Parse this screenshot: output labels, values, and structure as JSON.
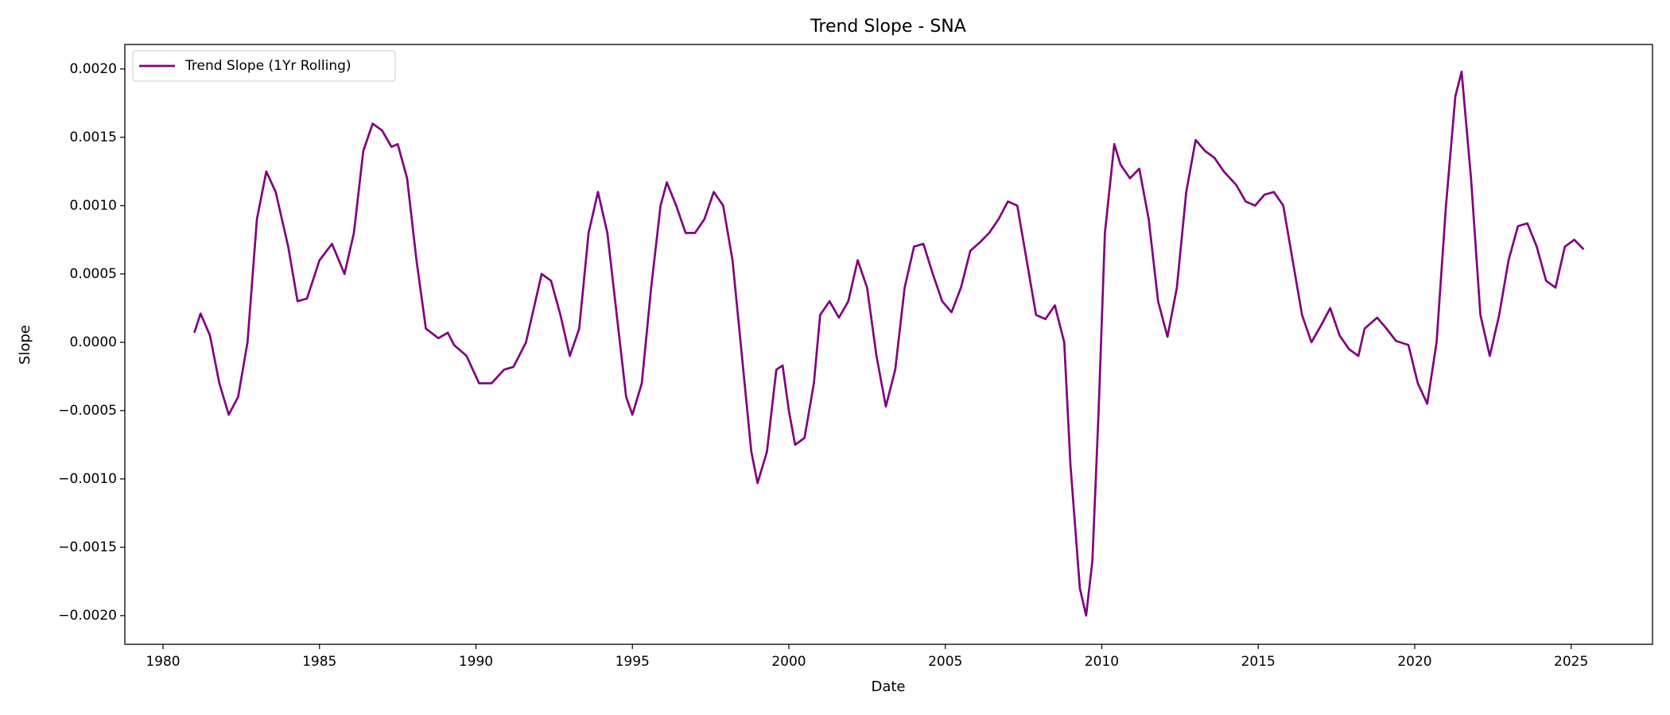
{
  "chart_data": {
    "type": "line",
    "title": "Trend Slope - SNA",
    "x_label": "Date",
    "y_label": "Slope",
    "legend": "upper left",
    "grid": false,
    "xlim": [
      1978.78,
      2027.6
    ],
    "ylim": [
      -0.00221,
      0.002179
    ],
    "xticks": [
      1980,
      1985,
      1990,
      1995,
      2000,
      2005,
      2010,
      2015,
      2020,
      2025
    ],
    "yticks": [
      {
        "value": -0.002,
        "label": "−0.0020"
      },
      {
        "value": -0.0015,
        "label": "−0.0015"
      },
      {
        "value": -0.001,
        "label": "−0.0010"
      },
      {
        "value": -0.0005,
        "label": "−0.0005"
      },
      {
        "value": 0,
        "label": "0.0000"
      },
      {
        "value": 0.0005,
        "label": "0.0005"
      },
      {
        "value": 0.001,
        "label": "0.0010"
      },
      {
        "value": 0.0015,
        "label": "0.0015"
      },
      {
        "value": 0.002,
        "label": "0.0020"
      }
    ],
    "x": [
      1981.0,
      1981.2,
      1981.5,
      1981.8,
      1982.1,
      1982.4,
      1982.7,
      1983.0,
      1983.3,
      1983.6,
      1984.0,
      1984.3,
      1984.6,
      1985.0,
      1985.4,
      1985.8,
      1986.1,
      1986.4,
      1986.7,
      1987.0,
      1987.3,
      1987.5,
      1987.8,
      1988.1,
      1988.4,
      1988.8,
      1989.1,
      1989.3,
      1989.7,
      1990.1,
      1990.5,
      1990.9,
      1991.2,
      1991.6,
      1991.9,
      1992.1,
      1992.4,
      1992.7,
      1993.0,
      1993.3,
      1993.6,
      1993.9,
      1994.2,
      1994.5,
      1994.8,
      1995.0,
      1995.3,
      1995.6,
      1995.9,
      1996.1,
      1996.4,
      1996.7,
      1997.0,
      1997.3,
      1997.6,
      1997.9,
      1998.2,
      1998.5,
      1998.8,
      1999.0,
      1999.3,
      1999.6,
      1999.8,
      2000.0,
      2000.2,
      2000.5,
      2000.8,
      2001.0,
      2001.3,
      2001.6,
      2001.9,
      2002.2,
      2002.5,
      2002.8,
      2003.1,
      2003.4,
      2003.7,
      2004.0,
      2004.3,
      2004.6,
      2004.9,
      2005.2,
      2005.5,
      2005.8,
      2006.1,
      2006.4,
      2006.7,
      2007.0,
      2007.3,
      2007.6,
      2007.9,
      2008.2,
      2008.5,
      2008.8,
      2009.0,
      2009.3,
      2009.5,
      2009.7,
      2009.9,
      2010.1,
      2010.4,
      2010.6,
      2010.9,
      2011.2,
      2011.5,
      2011.8,
      2012.1,
      2012.4,
      2012.7,
      2013.0,
      2013.3,
      2013.6,
      2013.9,
      2014.3,
      2014.6,
      2014.9,
      2015.2,
      2015.5,
      2015.8,
      2016.1,
      2016.4,
      2016.7,
      2017.0,
      2017.3,
      2017.6,
      2017.9,
      2018.2,
      2018.4,
      2018.8,
      2019.1,
      2019.4,
      2019.8,
      2020.1,
      2020.4,
      2020.7,
      2021.0,
      2021.3,
      2021.5,
      2021.8,
      2022.1,
      2022.4,
      2022.7,
      2023.0,
      2023.3,
      2023.6,
      2023.9,
      2024.2,
      2024.5,
      2024.8,
      2025.1,
      2025.4
    ],
    "series": [
      {
        "name": "Trend Slope (1Yr Rolling)",
        "color": "#800080",
        "values": [
          7e-05,
          0.00021,
          5e-05,
          -0.0003,
          -0.00053,
          -0.0004,
          0.0,
          0.0009,
          0.00125,
          0.0011,
          0.0007,
          0.0003,
          0.00032,
          0.0006,
          0.00072,
          0.0005,
          0.0008,
          0.0014,
          0.0016,
          0.00155,
          0.00143,
          0.00145,
          0.0012,
          0.0006,
          0.0001,
          3e-05,
          7e-05,
          -2e-05,
          -0.0001,
          -0.0003,
          -0.0003,
          -0.0002,
          -0.00018,
          0.0,
          0.0003,
          0.0005,
          0.00045,
          0.0002,
          -0.0001,
          0.0001,
          0.0008,
          0.0011,
          0.0008,
          0.0002,
          -0.0004,
          -0.00053,
          -0.0003,
          0.0004,
          0.001,
          0.00117,
          0.001,
          0.0008,
          0.0008,
          0.0009,
          0.0011,
          0.001,
          0.0006,
          -0.0001,
          -0.0008,
          -0.00103,
          -0.0008,
          -0.0002,
          -0.00017,
          -0.0005,
          -0.00075,
          -0.0007,
          -0.0003,
          0.0002,
          0.0003,
          0.00018,
          0.0003,
          0.0006,
          0.0004,
          -0.0001,
          -0.00047,
          -0.0002,
          0.0004,
          0.0007,
          0.00072,
          0.0005,
          0.0003,
          0.00022,
          0.0004,
          0.00067,
          0.00073,
          0.0008,
          0.0009,
          0.00103,
          0.001,
          0.0006,
          0.0002,
          0.00017,
          0.00027,
          0.0,
          -0.0009,
          -0.0018,
          -0.002,
          -0.0016,
          -0.0005,
          0.0008,
          0.00145,
          0.0013,
          0.0012,
          0.00127,
          0.0009,
          0.0003,
          4e-05,
          0.0004,
          0.0011,
          0.00148,
          0.0014,
          0.00135,
          0.00125,
          0.00115,
          0.00103,
          0.001,
          0.00108,
          0.0011,
          0.001,
          0.0006,
          0.0002,
          0.0,
          0.00012,
          0.00025,
          5e-05,
          -5e-05,
          -0.0001,
          0.0001,
          0.00018,
          0.0001,
          1e-05,
          -2e-05,
          -0.0003,
          -0.00045,
          0.0,
          0.001,
          0.0018,
          0.00198,
          0.0012,
          0.0002,
          -0.0001,
          0.0002,
          0.0006,
          0.00085,
          0.00087,
          0.0007,
          0.00045,
          0.0004,
          0.0007,
          0.00075,
          0.00068
        ]
      }
    ]
  }
}
